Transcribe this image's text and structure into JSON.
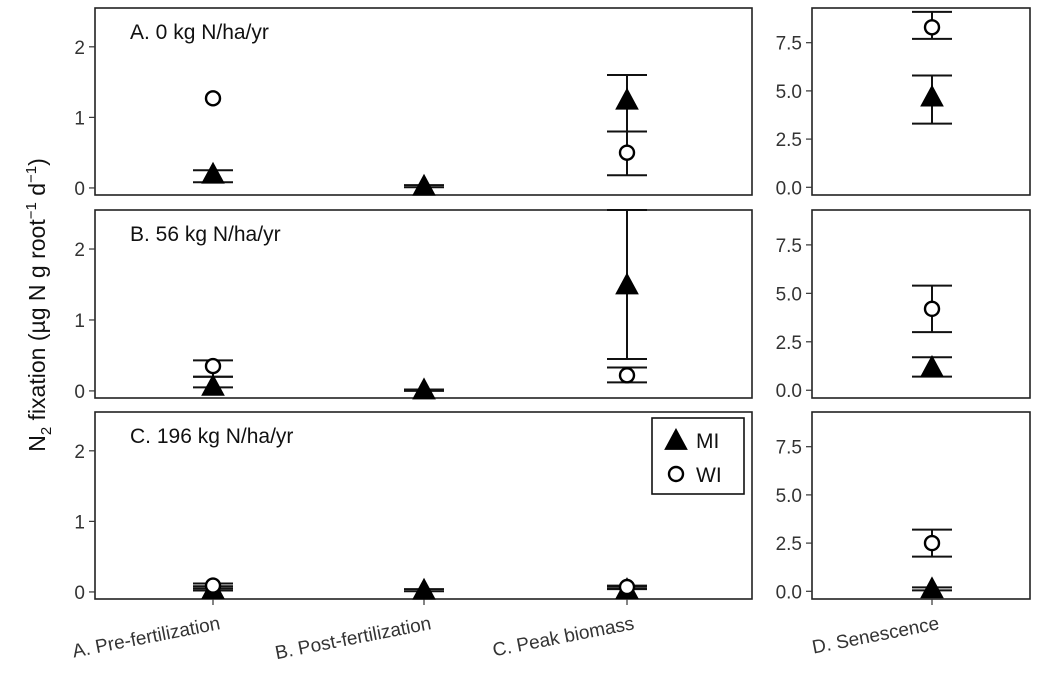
{
  "chart_data": {
    "type": "scatter",
    "ylabel": {
      "prefix": "N",
      "sub": "2",
      "middle": " fixation (µg N g root",
      "sup1": "−1",
      "space": " d",
      "sup2": "−1",
      "suffix": ")"
    },
    "categories": [
      "A. Pre-fertilization",
      "B. Post-fertilization",
      "C. Peak biomass"
    ],
    "senescence_category": "D. Senescence",
    "legend": {
      "position": "inside-right of panel C",
      "entries": [
        {
          "name": "MI",
          "marker": "filled-triangle"
        },
        {
          "name": "WI",
          "marker": "open-circle"
        }
      ]
    },
    "left_yticks": [
      "0",
      "1",
      "2"
    ],
    "right_yticks": [
      "0.0",
      "2.5",
      "5.0",
      "7.5"
    ],
    "left_ylim": [
      -0.1,
      2.55
    ],
    "right_ylim": [
      -0.4,
      9.3
    ],
    "panels": [
      {
        "title": "A. 0 kg N/ha/yr",
        "main": [
          {
            "series": "MI",
            "values": [
              {
                "y": 0.2,
                "lo": 0.08,
                "hi": 0.25
              },
              {
                "y": 0.03,
                "lo": 0.01,
                "hi": 0.04
              },
              {
                "y": 1.25,
                "lo": 0.8,
                "hi": 1.6
              }
            ]
          },
          {
            "series": "WI",
            "values": [
              {
                "y": 1.27,
                "lo": null,
                "hi": null
              },
              null,
              {
                "y": 0.5,
                "lo": 0.18,
                "hi": 0.8
              }
            ]
          }
        ],
        "senescence": [
          {
            "series": "MI",
            "value": {
              "y": 4.7,
              "lo": 3.3,
              "hi": 5.8
            }
          },
          {
            "series": "WI",
            "value": {
              "y": 8.3,
              "lo": 7.7,
              "hi": 9.1
            }
          }
        ]
      },
      {
        "title": "B. 56 kg N/ha/yr",
        "main": [
          {
            "series": "MI",
            "values": [
              {
                "y": 0.07,
                "lo": 0.05,
                "hi": 0.2
              },
              {
                "y": 0.02,
                "lo": 0.0,
                "hi": 0.02
              },
              {
                "y": 1.5,
                "lo": 0.45,
                "hi": 2.55
              }
            ]
          },
          {
            "series": "WI",
            "values": [
              {
                "y": 0.35,
                "lo": 0.2,
                "hi": 0.43
              },
              null,
              {
                "y": 0.22,
                "lo": 0.12,
                "hi": 0.33
              }
            ]
          }
        ],
        "senescence": [
          {
            "series": "MI",
            "value": {
              "y": 1.2,
              "lo": 0.7,
              "hi": 1.7
            }
          },
          {
            "series": "WI",
            "value": {
              "y": 4.2,
              "lo": 3.0,
              "hi": 5.4
            }
          }
        ]
      },
      {
        "title": "C. 196 kg N/ha/yr",
        "main": [
          {
            "series": "MI",
            "values": [
              {
                "y": 0.04,
                "lo": 0.02,
                "hi": 0.08
              },
              {
                "y": 0.03,
                "lo": 0.01,
                "hi": 0.04
              },
              {
                "y": 0.04,
                "lo": 0.04,
                "hi": 0.08
              }
            ]
          },
          {
            "series": "WI",
            "values": [
              {
                "y": 0.09,
                "lo": 0.05,
                "hi": 0.12
              },
              null,
              {
                "y": 0.07,
                "lo": 0.05,
                "hi": 0.09
              }
            ]
          }
        ],
        "senescence": [
          {
            "series": "MI",
            "value": {
              "y": 0.15,
              "lo": 0.05,
              "hi": 0.2
            }
          },
          {
            "series": "WI",
            "value": {
              "y": 2.5,
              "lo": 1.8,
              "hi": 3.2
            }
          }
        ]
      }
    ],
    "grid": false
  }
}
